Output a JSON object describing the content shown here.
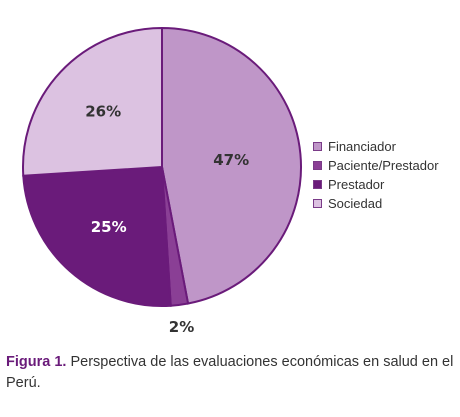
{
  "chart_data": {
    "type": "pie",
    "title": "",
    "slices": [
      {
        "label": "Financiador",
        "value": 47,
        "display": "47%",
        "color": "#bf96c8",
        "label_color": "#333333"
      },
      {
        "label": "Paciente/Prestador",
        "value": 2,
        "display": "2%",
        "color": "#8a3f95",
        "label_color": "#333333"
      },
      {
        "label": "Prestador",
        "value": 25,
        "display": "25%",
        "color": "#6a1b7a",
        "label_color": "#ffffff"
      },
      {
        "label": "Sociedad",
        "value": 26,
        "display": "26%",
        "color": "#dcc2e1",
        "label_color": "#333333"
      }
    ],
    "legend_position": "right"
  },
  "legend": {
    "items": [
      "Financiador",
      "Paciente/Prestador",
      "Prestador",
      "Sociedad"
    ]
  },
  "caption": {
    "prefix": "Figura 1.",
    "text": " Perspectiva de las evaluaciones económicas en salud en el Perú."
  }
}
